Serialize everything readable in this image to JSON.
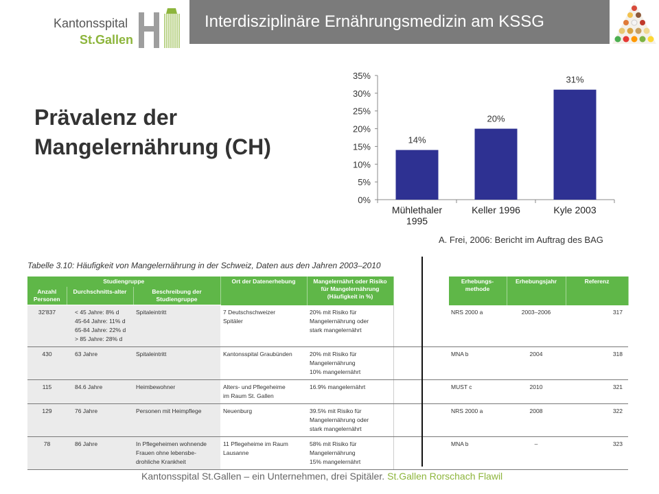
{
  "header": {
    "logo": {
      "line1": "Kantonsspital",
      "line2": "St.Gallen"
    },
    "title": "Interdisziplinäre Ernährungsmedizin am KSSG"
  },
  "slide": {
    "heading_line1": "Prävalenz der",
    "heading_line2": "Mangelernährung (CH)"
  },
  "chart_data": {
    "type": "bar",
    "categories": [
      "Mühlethaler 1995",
      "Keller 1996",
      "Kyle 2003"
    ],
    "category_lines": [
      [
        "Mühlethaler",
        "1995"
      ],
      [
        "Keller 1996"
      ],
      [
        "Kyle 2003"
      ]
    ],
    "values": [
      14,
      20,
      31
    ],
    "data_labels": [
      "14%",
      "20%",
      "31%"
    ],
    "ylim": [
      0,
      35
    ],
    "yticks": [
      0,
      5,
      10,
      15,
      20,
      25,
      30,
      35
    ],
    "ytick_labels": [
      "0%",
      "5%",
      "10%",
      "15%",
      "20%",
      "25%",
      "30%",
      "35%"
    ],
    "bar_color": "#2e3192",
    "grid": false,
    "legend": "none",
    "title": "",
    "xlabel": "",
    "ylabel": ""
  },
  "source": "A. Frei, 2006: Bericht im Auftrag des BAG",
  "table": {
    "caption": "Tabelle 3.10: Häufigkeit von Mangelernährung in der Schweiz, Daten aus den Jahren 2003–2010",
    "group_header": "Studiengruppe",
    "headers": {
      "ort": "Ort der Datenerhebung",
      "mangel": "Mangelernährt oder Risiko für Mangelernährung (Häufigkeit in %)",
      "methode": "Erhebungs-methode",
      "jahr": "Erhebungsjahr",
      "referenz": "Referenz",
      "anzahl": "Anzahl Personen",
      "alter": "Durchschnitts-alter",
      "beschreibung": "Beschreibung der Studiengruppe"
    },
    "rows": [
      {
        "anzahl": "32'837",
        "alter": [
          "< 45 Jahre: 8% d",
          "45-64 Jahre: 11% d",
          "65-84 Jahre: 22% d",
          "> 85 Jahre: 28% d"
        ],
        "beschreibung": [
          "Spitaleintritt"
        ],
        "ort": [
          "7 Deutschschweizer",
          "Spitäler"
        ],
        "mangel": [
          "20% mit Risiko für",
          "Mangelernährung oder",
          "stark mangelernährt"
        ],
        "methode": "NRS 2000 a",
        "jahr": "2003–2006",
        "referenz": "317"
      },
      {
        "anzahl": "430",
        "alter": [
          "63 Jahre"
        ],
        "beschreibung": [
          "Spitaleintritt"
        ],
        "ort": [
          "Kantonsspital Graubünden"
        ],
        "mangel": [
          "20% mit Risiko für",
          "Mangelernährung",
          "10% mangelernährt"
        ],
        "methode": "MNA b",
        "jahr": "2004",
        "referenz": "318"
      },
      {
        "anzahl": "115",
        "alter": [
          "84.6 Jahre"
        ],
        "beschreibung": [
          "Heimbewohner"
        ],
        "ort": [
          "Alters- und Pflegeheime",
          "im Raum St. Gallen"
        ],
        "mangel": [
          "16.9% mangelernährt"
        ],
        "methode": "MUST c",
        "jahr": "2010",
        "referenz": "321"
      },
      {
        "anzahl": "129",
        "alter": [
          "76 Jahre"
        ],
        "beschreibung": [
          "Personen mit Heimpflege"
        ],
        "ort": [
          "Neuenburg"
        ],
        "mangel": [
          "39.5% mit Risiko für",
          "Mangelernährung oder",
          "stark mangelernährt"
        ],
        "methode": "NRS 2000 a",
        "jahr": "2008",
        "referenz": "322"
      },
      {
        "anzahl": "78",
        "alter": [
          "86 Jahre"
        ],
        "beschreibung": [
          "In Pflegeheimen wohnende",
          "Frauen ohne lebensbe-",
          "drohliche Krankheit"
        ],
        "ort": [
          "11 Pflegeheime im Raum",
          "Lausanne"
        ],
        "mangel": [
          "58% mit Risiko für",
          "Mangelernährung",
          "15% mangelernährt"
        ],
        "methode": "MNA b",
        "jahr": "–",
        "referenz": "323"
      }
    ]
  },
  "footer": {
    "text": "Kantonsspital St.Gallen – ein Unternehmen, drei Spitäler.",
    "highlight": "St.Gallen  Rorschach  Flawil"
  },
  "colors": {
    "title_bar": "#7b7b7b",
    "brand_green": "#8db53c",
    "table_header": "#5fb748"
  },
  "icons": [
    "hospital-logo-mark",
    "food-pyramid-image"
  ]
}
